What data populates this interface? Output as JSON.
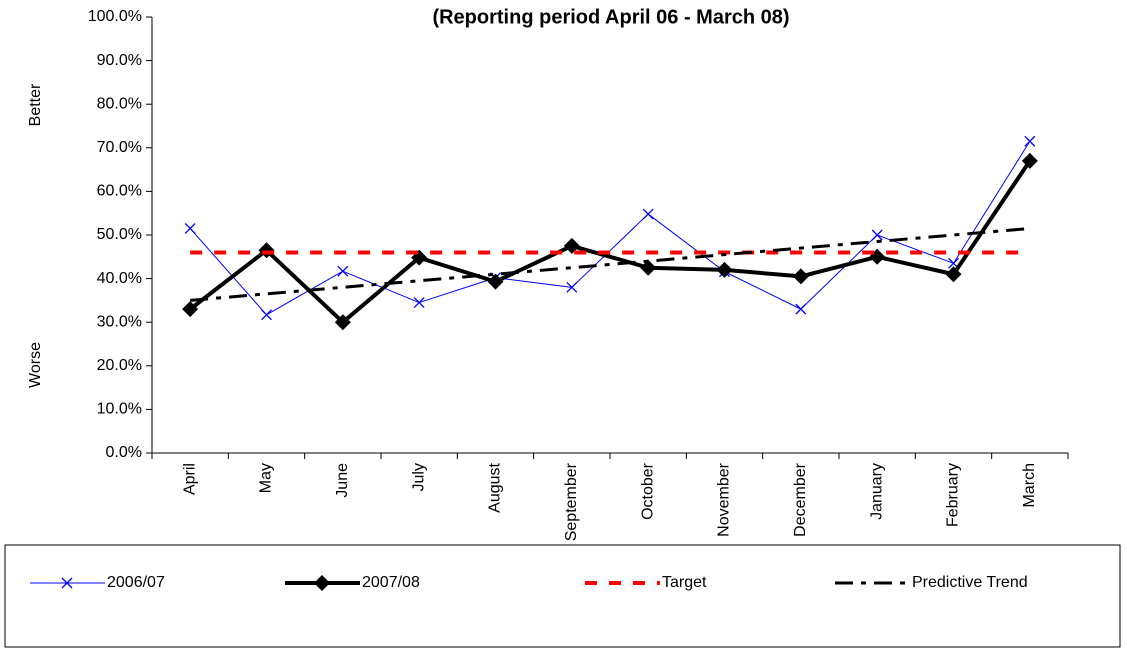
{
  "chart_data": {
    "type": "line",
    "title": "(Reporting period  April 06 - March 08)",
    "y_annotations": [
      "Better",
      "Worse"
    ],
    "categories": [
      "April",
      "May",
      "June",
      "July",
      "August",
      "September",
      "October",
      "November",
      "December",
      "January",
      "February",
      "March"
    ],
    "series": [
      {
        "name": "2006/07",
        "color": "#0000ff",
        "width": 1,
        "marker": "x",
        "dash": "none",
        "values": [
          51.5,
          31.7,
          41.7,
          34.5,
          40.2,
          38,
          54.8,
          41.6,
          33,
          50,
          43.5,
          71.5
        ]
      },
      {
        "name": "2007/08",
        "color": "#000000",
        "width": 4,
        "marker": "diamond",
        "dash": "none",
        "values": [
          33,
          46.5,
          30,
          44.8,
          39.3,
          47.5,
          42.5,
          42,
          40.5,
          45,
          41,
          67
        ]
      },
      {
        "name": "Target",
        "color": "#ff0000",
        "width": 4,
        "marker": "none",
        "dash": "12,12",
        "values": [
          46,
          46,
          46,
          46,
          46,
          46,
          46,
          46,
          46,
          46,
          46,
          46
        ]
      },
      {
        "name": "Predictive Trend",
        "color": "#000000",
        "width": 3,
        "marker": "none",
        "dash": "18,8,5,8",
        "values": [
          35,
          36.5,
          38,
          39.5,
          41,
          42.5,
          44,
          45.5,
          47,
          48.5,
          50,
          51.5
        ]
      }
    ],
    "ylim": [
      0,
      100
    ],
    "yticks": [
      {
        "value": 0,
        "label": "0.0%"
      },
      {
        "value": 10,
        "label": "10.0%"
      },
      {
        "value": 20,
        "label": "20.0%"
      },
      {
        "value": 30,
        "label": "30.0%"
      },
      {
        "value": 40,
        "label": "40.0%"
      },
      {
        "value": 50,
        "label": "50.0%"
      },
      {
        "value": 60,
        "label": "60.0%"
      },
      {
        "value": 70,
        "label": "70.0%"
      },
      {
        "value": 80,
        "label": "80.0%"
      },
      {
        "value": 90,
        "label": "90.0%"
      },
      {
        "value": 100,
        "label": "100.0%"
      }
    ],
    "grid": false,
    "legend": "bottom"
  }
}
